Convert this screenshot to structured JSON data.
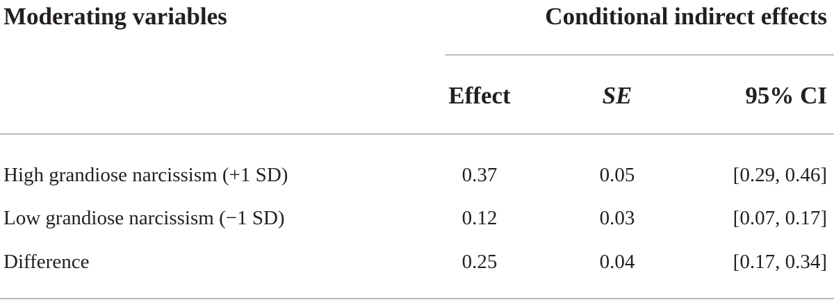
{
  "table": {
    "header": [
      "Moderating variables",
      "Conditional indirect effects"
    ],
    "subheader": [
      "Effect",
      "SE",
      "95% CI"
    ],
    "rows": [
      [
        "High grandiose narcissism (+1 SD)",
        0.37,
        0.05,
        "[0.29, 0.46]"
      ],
      [
        "Low grandiose narcissism (−1 SD)",
        0.12,
        0.03,
        "[0.07, 0.17]"
      ],
      [
        "Difference",
        0.25,
        0.04,
        "[0.17, 0.34]"
      ]
    ]
  }
}
